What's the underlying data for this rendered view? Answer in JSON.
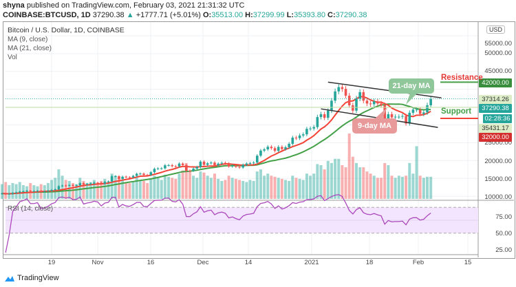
{
  "header": {
    "author": "shyna",
    "published_text": "published on TradingView.com, February 03, 2021 21:31:32 UTC",
    "symbol": "COINBASE:BTCUSD, 1D",
    "last": "37290.38",
    "change": "+1777.71 (+5.01%)",
    "o_label": "O:",
    "open": "35513.00",
    "h_label": "H:",
    "high": "37299.99",
    "l_label": "L:",
    "low": "35393.80",
    "c_label": "C:",
    "close": "37290.38"
  },
  "legend": {
    "title": "Bitcoin / U.S. Dollar, 1D, COINBASE",
    "ma9": "MA (9, close)",
    "ma21": "MA (21, close)",
    "vol": "Vol"
  },
  "price_axis": {
    "currency": "USD",
    "ticks": [
      "55000.00",
      "50000.00",
      "45000.00",
      "25000.00",
      "20000.00",
      "15000.00",
      "10000.00"
    ],
    "tags": {
      "resistance": "42000.00",
      "ma9": "37314.26",
      "last": "37290.38",
      "countdown": "02:28:36",
      "ma21": "35431.17",
      "support": "32000.00"
    }
  },
  "annotations": {
    "resistance": "Resistance",
    "support": "Support",
    "ma21": "21-day MA",
    "ma9": "9-day MA"
  },
  "rsi": {
    "label": "RSI (14, close)",
    "ticks": [
      "75.00",
      "50.00",
      "25.00"
    ]
  },
  "time_axis": [
    "19",
    "Nov",
    "16",
    "Dec",
    "14",
    "2021",
    "18",
    "Feb",
    "15"
  ],
  "brand": "TradingView",
  "colors": {
    "up": "#26a69a",
    "down": "#ef5350",
    "ma9": "#f44336",
    "ma21": "#43a047",
    "rsi": "#ab47bc",
    "resistance_tag": "#388e3c",
    "support_tag": "#d32f2f"
  },
  "chart_data": {
    "type": "candlestick",
    "start_date": "2020-10-05",
    "end_date": "2021-02-03",
    "interval": "1D",
    "ylim": [
      10000,
      57000
    ],
    "close": [
      10790,
      10600,
      10670,
      10930,
      11060,
      11300,
      11380,
      11540,
      11430,
      11430,
      11500,
      11330,
      11370,
      11510,
      11760,
      11920,
      12820,
      12990,
      12940,
      13130,
      13030,
      13080,
      13650,
      13280,
      13460,
      13570,
      13800,
      13760,
      13550,
      14030,
      14160,
      15590,
      15600,
      14840,
      15480,
      15340,
      15300,
      15700,
      16300,
      16330,
      15970,
      15960,
      16730,
      17680,
      17800,
      17820,
      18680,
      18700,
      18420,
      18370,
      19160,
      18730,
      17160,
      17140,
      17730,
      18190,
      19700,
      18800,
      19230,
      19440,
      18650,
      19150,
      19360,
      19170,
      18340,
      18560,
      18250,
      18040,
      18810,
      19170,
      19270,
      19440,
      21360,
      22800,
      23150,
      23870,
      23480,
      22720,
      23830,
      23230,
      23740,
      24700,
      26440,
      26280,
      27040,
      27360,
      28900,
      29000,
      29400,
      32200,
      33000,
      32000,
      34000,
      36800,
      39400,
      40600,
      40100,
      38200,
      35500,
      34000,
      37400,
      39200,
      36800,
      36000,
      35800,
      36600,
      36000,
      35500,
      30800,
      33000,
      32100,
      32300,
      32300,
      32500,
      30400,
      33400,
      34300,
      34300,
      33100,
      33500,
      35510,
      37290
    ],
    "volume": [
      14,
      16,
      13,
      15,
      14,
      16,
      13,
      12,
      15,
      13,
      12,
      14,
      13,
      15,
      18,
      20,
      28,
      22,
      18,
      17,
      15,
      14,
      20,
      17,
      15,
      16,
      18,
      14,
      17,
      19,
      16,
      24,
      22,
      21,
      18,
      16,
      15,
      17,
      20,
      18,
      17,
      15,
      19,
      22,
      20,
      18,
      23,
      21,
      20,
      19,
      24,
      27,
      34,
      26,
      22,
      20,
      26,
      25,
      22,
      20,
      24,
      19,
      17,
      18,
      22,
      20,
      19,
      18,
      17,
      16,
      18,
      17,
      26,
      28,
      22,
      24,
      22,
      21,
      20,
      19,
      18,
      17,
      22,
      20,
      19,
      18,
      24,
      22,
      24,
      33,
      32,
      28,
      36,
      34,
      38,
      38,
      32,
      30,
      62,
      40,
      34,
      30,
      30,
      26,
      24,
      22,
      20,
      20,
      34,
      32,
      22,
      20,
      22,
      21,
      22,
      34,
      24,
      50,
      22,
      20,
      21,
      21
    ],
    "lines": {
      "resistance_trend": [
        [
          "2021-01-05",
          42000
        ],
        [
          "2021-02-06",
          37600
        ]
      ],
      "support_trend": [
        [
          "2021-01-03",
          34500
        ],
        [
          "2021-02-05",
          29300
        ]
      ],
      "resistance_level": 42000,
      "support_level": 32000
    },
    "rsi_range": [
      0,
      100
    ],
    "rsi_bands": [
      30,
      70
    ]
  }
}
